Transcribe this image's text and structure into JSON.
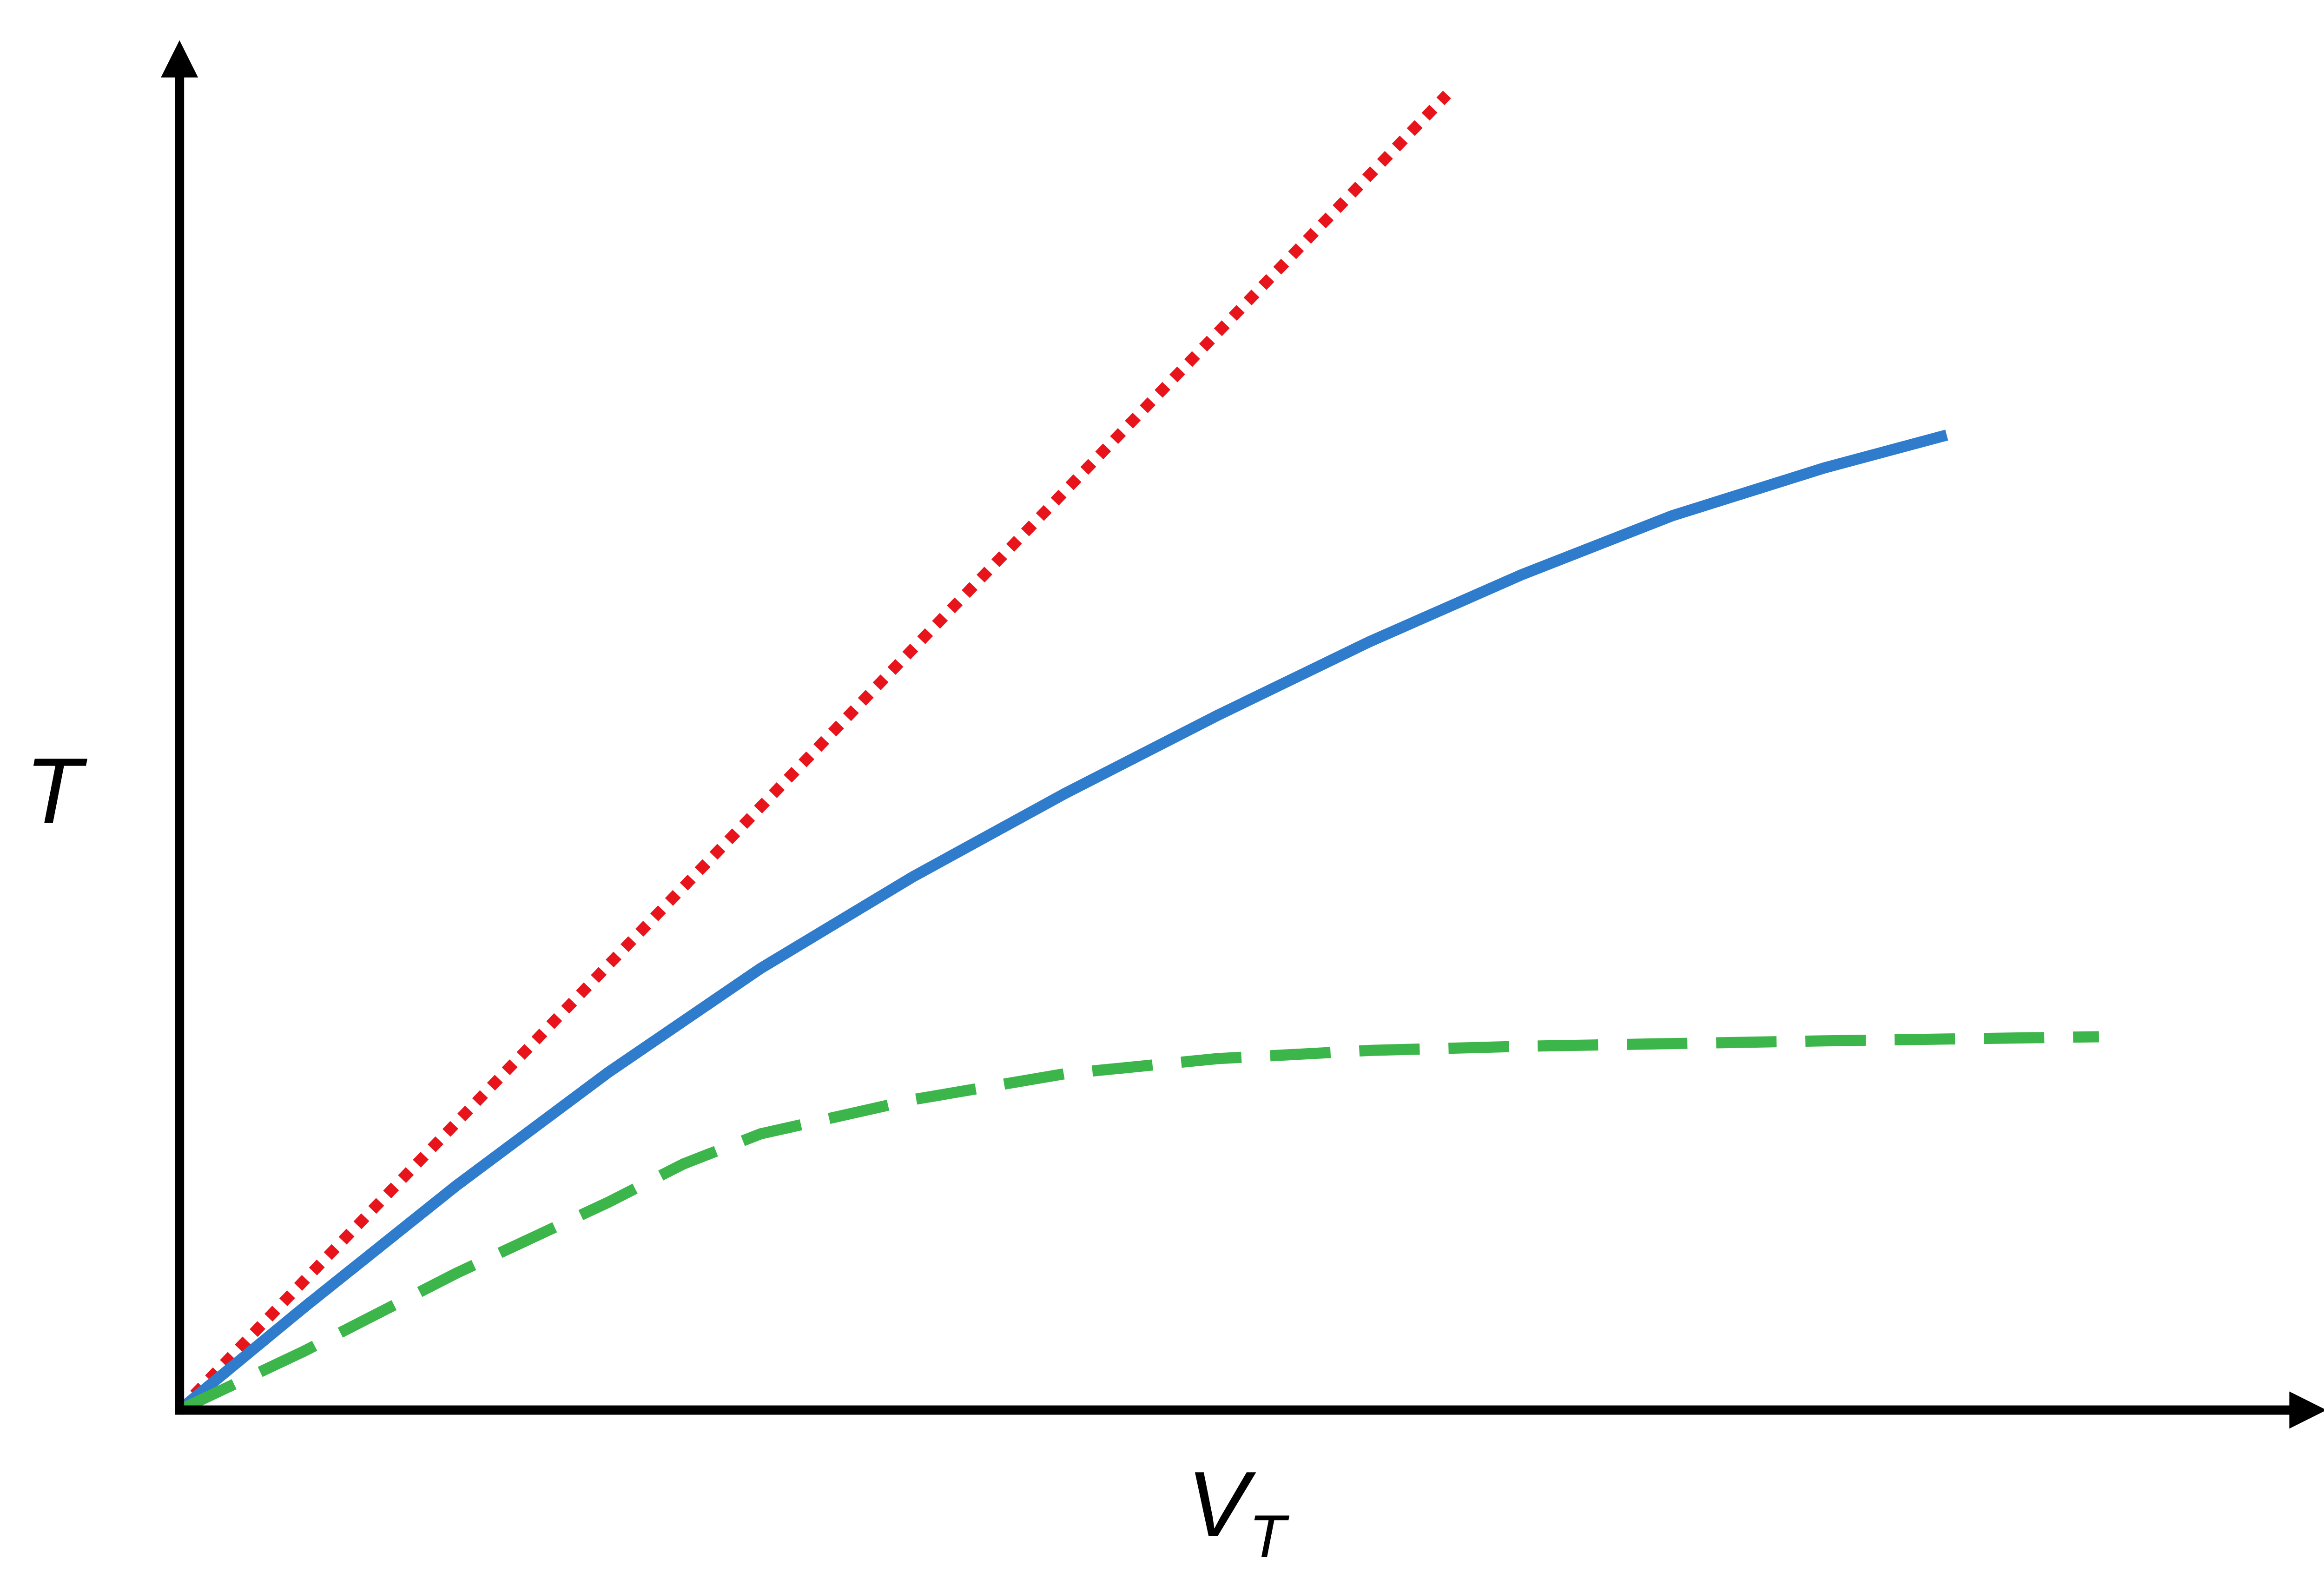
{
  "chart_data": {
    "type": "line",
    "xlabel": "V",
    "xlabel_subscript": "T",
    "ylabel": "T",
    "xlim": [
      0,
      100
    ],
    "ylim": [
      0,
      100
    ],
    "grid": false,
    "axis_color": "#000000",
    "series": [
      {
        "color": "#e8141c",
        "style": "dotted",
        "x": [
          0,
          59.1
        ],
        "values": [
          0,
          96.2
        ]
      },
      {
        "color": "#2f7bcc",
        "style": "solid",
        "x": [
          0,
          5.8,
          12.9,
          20.0,
          27.1,
          34.2,
          41.3,
          48.4,
          55.5,
          62.6,
          69.6,
          76.7,
          82.4
        ],
        "values": [
          0,
          7.5,
          16.4,
          24.7,
          32.3,
          39.0,
          45.1,
          50.8,
          56.2,
          61.1,
          65.4,
          68.9,
          71.3
        ]
      },
      {
        "color": "#3cb64a",
        "style": "dashed",
        "x": [
          0,
          5.8,
          12.9,
          20.0,
          23.5,
          27.1,
          34.2,
          41.3,
          48.4,
          55.5,
          62.6,
          69.6,
          76.7,
          89.5
        ],
        "values": [
          0,
          4.3,
          10.0,
          15.2,
          18.0,
          20.2,
          22.7,
          24.6,
          25.7,
          26.3,
          26.6,
          26.8,
          27.0,
          27.3
        ]
      }
    ]
  }
}
